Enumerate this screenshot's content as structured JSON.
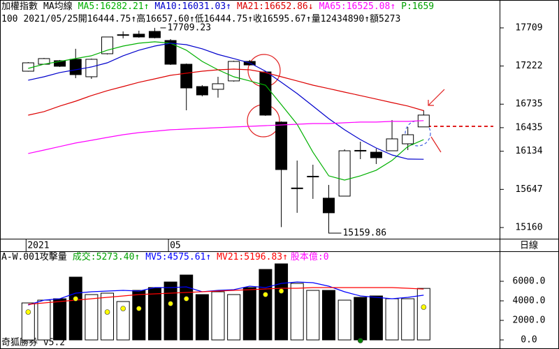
{
  "chart_data": [
    {
      "type": "candlestick",
      "title": "加權指數",
      "subtitle": "MA均線",
      "info": [
        "100",
        "2021/05/25",
        "開16444.75↑",
        "高16657.60↑",
        "低16444.75↑",
        "收16595.67↑",
        "量12434890↑",
        "額5273"
      ],
      "extra_label": {
        "text": "P:1659",
        "color": "#00a000"
      },
      "period_label": "日線",
      "categories": [
        "2021",
        null,
        null,
        null,
        null,
        null,
        null,
        null,
        null,
        "05",
        null,
        null,
        null,
        null,
        null,
        null,
        null,
        null,
        null,
        null,
        null,
        null,
        null,
        null,
        null,
        null
      ],
      "open": [
        17156,
        17245,
        17290,
        17308,
        17085,
        17379,
        17620,
        17629,
        17664,
        17548,
        17245,
        16960,
        16925,
        17032,
        17281,
        17147,
        16506,
        15660,
        15812,
        15535,
        15561,
        16145,
        16122,
        16140,
        16229,
        16444.75
      ],
      "high": [
        17272,
        17325,
        17299,
        17442,
        17317,
        17593,
        17664,
        17673,
        17709.23,
        17566,
        17254,
        16978,
        17085,
        17290,
        17299,
        17156,
        16515,
        16015,
        15962,
        15704,
        16158,
        16256,
        16167,
        16532,
        16443,
        16657.6
      ],
      "low": [
        17150,
        17240,
        17210,
        17067,
        17058,
        17370,
        17575,
        17584,
        17575,
        17236,
        16657,
        16835,
        16818,
        17023,
        17228,
        16586,
        15165,
        15348,
        15526,
        15159.86,
        15561,
        16033,
        15971,
        16140,
        16149,
        16444.75
      ],
      "close": [
        17263,
        17317,
        17219,
        17112,
        17308,
        17593,
        17622,
        17593,
        17584,
        17245,
        16942,
        16853,
        16996,
        17281,
        17236,
        16595,
        15900,
        15665,
        15815,
        15348,
        16140,
        16138,
        16051,
        16292,
        16345,
        16595.67
      ],
      "up_color": "#ffffff",
      "down_color": "#000000",
      "series": [
        {
          "name": "MA5:16282.21↑",
          "color": "#00b000",
          "values": [
            17192,
            17246,
            17281,
            17317,
            17353,
            17424,
            17477,
            17513,
            17531,
            17513,
            17424,
            17281,
            17174,
            17085,
            17032,
            16978,
            16729,
            16479,
            16123,
            15820,
            15766,
            15820,
            15891,
            16016,
            16194,
            16282.21
          ]
        },
        {
          "name": "MA10:16031.03↑",
          "color": "#0000cc",
          "values": [
            17041,
            17085,
            17139,
            17174,
            17210,
            17263,
            17353,
            17424,
            17477,
            17513,
            17495,
            17442,
            17370,
            17317,
            17263,
            17156,
            17014,
            16871,
            16711,
            16550,
            16408,
            16283,
            16176,
            16087,
            16034,
            16031.03
          ]
        },
        {
          "name": "MA21:16652.86↓",
          "color": "#dd0000",
          "values": [
            16595,
            16640,
            16711,
            16773,
            16845,
            16907,
            16960,
            17014,
            17058,
            17103,
            17130,
            17156,
            17174,
            17183,
            17174,
            17139,
            17085,
            17032,
            16978,
            16934,
            16889,
            16845,
            16800,
            16755,
            16711,
            16652.86
          ]
        },
        {
          "name": "MA65:16525.08↑",
          "color": "#ff00ff",
          "values": [
            16105,
            16149,
            16194,
            16239,
            16274,
            16310,
            16345,
            16372,
            16390,
            16408,
            16417,
            16426,
            16435,
            16444,
            16452,
            16461,
            16470,
            16479,
            16488,
            16488,
            16497,
            16506,
            16506,
            16515,
            16515,
            16525.08
          ]
        }
      ],
      "annotations": [
        {
          "value": 17709.23,
          "label": "17709.23"
        },
        {
          "value": 15159.86,
          "label": "15159.86"
        }
      ],
      "ylim": [
        15035,
        17762
      ],
      "yticks": [
        17709,
        17222,
        16735,
        16435,
        16134,
        15647,
        15160
      ]
    },
    {
      "type": "bar",
      "title": "A-W.001攻擊量",
      "extra_label": {
        "text": "股本億:0",
        "color": "#ff00ff"
      },
      "footer": "奇狐勝券 v5.2",
      "series": [
        {
          "name": "成交:5273.40↑",
          "color": "#00a000",
          "values": [
            3786,
            4071,
            4214,
            6429,
            4643,
            4786,
            3929,
            5071,
            5357,
            5929,
            6643,
            4643,
            4929,
            4643,
            5357,
            7214,
            7786,
            5786,
            5071,
            5071,
            4071,
            4357,
            4500,
            4214,
            4214,
            5273.4
          ]
        },
        {
          "name": "MV5:4575.61↑",
          "color": "#0000ff",
          "type": "line",
          "values": [
            3571,
            4071,
            4214,
            4786,
            4929,
            5000,
            5071,
            5000,
            5357,
            5357,
            5429,
            4929,
            5071,
            5143,
            5500,
            5357,
            5786,
            5929,
            5857,
            5500,
            4929,
            4500,
            4357,
            4214,
            4357,
            4575.61
          ]
        },
        {
          "name": "MV21:5196.83↑",
          "color": "#ff0000",
          "type": "line",
          "values": [
            3643,
            3786,
            3929,
            4071,
            4214,
            4357,
            4500,
            4643,
            4714,
            4786,
            4857,
            4929,
            5000,
            5071,
            5143,
            5214,
            5286,
            5286,
            5357,
            5357,
            5357,
            5357,
            5357,
            5357,
            5286,
            5196.83
          ]
        }
      ],
      "markers": [
        {
          "color": "#ffff00",
          "values": [
            2857,
            null,
            null,
            4214,
            null,
            2857,
            3214,
            3214,
            null,
            3714,
            4214,
            null,
            null,
            null,
            null,
            4643,
            5000,
            null,
            null,
            null,
            null,
            null,
            null,
            null,
            null,
            3357
          ]
        },
        {
          "color": "#008000",
          "values": [
            null,
            null,
            null,
            null,
            null,
            null,
            null,
            null,
            null,
            null,
            null,
            null,
            null,
            null,
            null,
            null,
            null,
            null,
            null,
            null,
            null,
            -71,
            null,
            null,
            null,
            null
          ]
        }
      ],
      "ylim": [
        -214,
        7643
      ],
      "yticks": [
        {
          "value": 6000,
          "label": "6000.0"
        },
        {
          "value": 4000,
          "label": "4000.0"
        },
        {
          "value": 2000,
          "label": "2000.0"
        },
        {
          "value": 0,
          "label": "0.0"
        }
      ]
    }
  ]
}
